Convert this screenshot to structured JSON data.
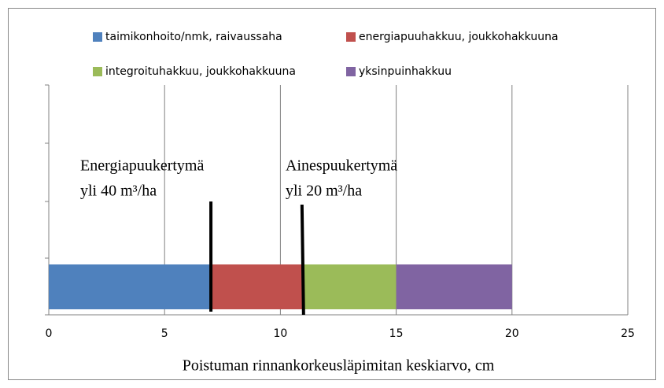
{
  "chart_data": {
    "type": "bar",
    "orientation": "horizontal",
    "stacked": true,
    "categories": [
      null
    ],
    "series": [
      {
        "name": "taimikonhoito/nmk, raivaussaha",
        "color": "#4f81bd",
        "values": [
          7
        ]
      },
      {
        "name": "energiapuuhakkuu, joukkohakkuuna",
        "color": "#c0504d",
        "values": [
          4
        ]
      },
      {
        "name": "integroituhakkuu, joukkohakkuuna",
        "color": "#9bbb59",
        "values": [
          4
        ]
      },
      {
        "name": "yksinpuinhakkuu",
        "color": "#8064a2",
        "values": [
          5
        ]
      }
    ],
    "xlabel": "Poistuman rinnankorkeusläpimitan keskiarvo, cm",
    "xlim": [
      0,
      25
    ],
    "xticks": [
      0,
      5,
      10,
      15,
      20,
      25
    ],
    "grid": true,
    "annotations": [
      {
        "lines": [
          "Energiapuukertymä",
          "yli 40 m³/ha"
        ]
      },
      {
        "lines": [
          "Ainespuukertymä",
          "yli 20 m³/ha"
        ]
      }
    ]
  }
}
